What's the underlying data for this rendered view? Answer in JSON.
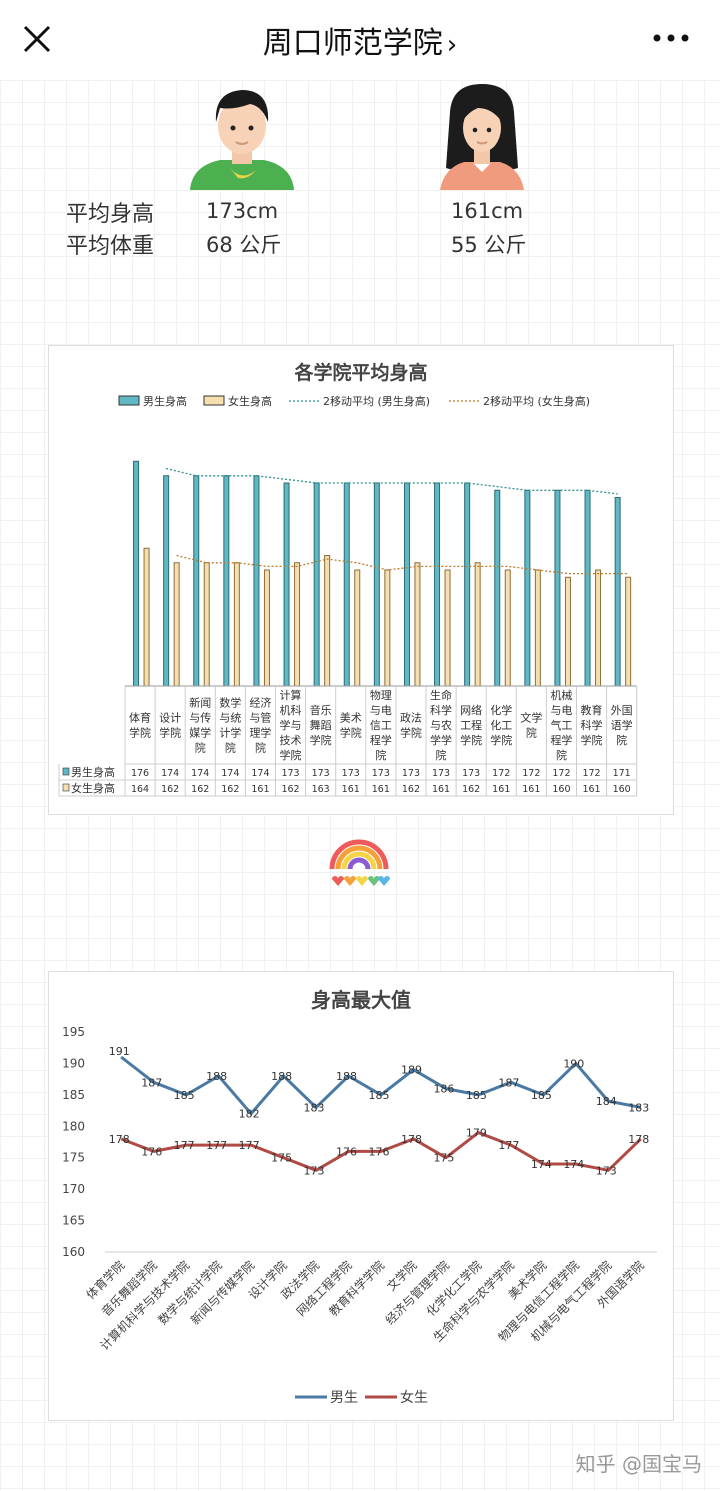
{
  "header": {
    "title": "周口师范学院",
    "chevron": "›"
  },
  "summary": {
    "height_label": "平均身高",
    "weight_label": "平均体重",
    "male": {
      "height": "173cm",
      "weight_num": "68",
      "weight_unit": "公斤"
    },
    "female": {
      "height": "161cm",
      "weight_num": "55",
      "weight_unit": "公斤"
    }
  },
  "watermark": "知乎 @国宝马",
  "colors": {
    "male_bar": "#5fb8c4",
    "female_bar": "#f5dfb0",
    "male_line": "#4a7aa3",
    "female_line": "#b04a44"
  },
  "chart_data": [
    {
      "type": "bar",
      "title": "各学院平均身高",
      "legend": [
        "男生身高",
        "女生身高",
        "2移动平均 (男生身高)",
        "2移动平均 (女生身高)"
      ],
      "categories": [
        "体育学院",
        "设计学院",
        "新闻与传媒学院",
        "数学与统计学院",
        "经济与管理学院",
        "计算机科学与技术学院",
        "音乐舞蹈学院",
        "美术学院",
        "物理与电信工程学院",
        "政法学院",
        "生命科学与农学学院",
        "网络工程学院",
        "化学化工学院",
        "文学院",
        "机械与电气工程学院",
        "教育科学学院",
        "外国语学院"
      ],
      "category_labels": [
        "体育\n学院",
        "设计\n学院",
        "新闻\n与传\n媒学\n院",
        "数学\n与统\n计学\n院",
        "经济\n与管\n理学\n院",
        "计算\n机科\n学与\n技术\n学院",
        "音乐\n舞蹈\n学院",
        "美术\n学院",
        "物理\n与电\n信工\n程学\n院",
        "政法\n学院",
        "生命\n科学\n与农\n学学\n院",
        "网络\n工程\n学院",
        "化学\n化工\n学院",
        "文学\n院",
        "机械\n与电\n气工\n程学\n院",
        "教育\n科学\n学院",
        "外国\n语学\n院"
      ],
      "series": [
        {
          "name": "男生身高",
          "values": [
            176,
            174,
            174,
            174,
            174,
            173,
            173,
            173,
            173,
            173,
            173,
            173,
            172,
            172,
            172,
            172,
            171
          ]
        },
        {
          "name": "女生身高",
          "values": [
            164,
            162,
            162,
            162,
            161,
            162,
            163,
            161,
            161,
            162,
            161,
            162,
            161,
            161,
            160,
            161,
            160
          ]
        }
      ],
      "trendlines": [
        "2移动平均 (男生身高)",
        "2移动平均 (女生身高)"
      ],
      "legend_position": "top"
    },
    {
      "type": "line",
      "title": "身高最大值",
      "categories": [
        "体育学院",
        "音乐舞蹈学院",
        "计算机科学与技术学院",
        "数学与统计学院",
        "新闻与传媒学院",
        "设计学院",
        "政法学院",
        "网络工程学院",
        "教育科学学院",
        "文学院",
        "经济与管理学院",
        "化学化工学院",
        "生命科学与农学学院",
        "美术学院",
        "物理与电信工程学院",
        "机械与电气工程学院",
        "外国语学院"
      ],
      "series": [
        {
          "name": "男生",
          "values": [
            191,
            187,
            185,
            188,
            182,
            188,
            183,
            188,
            185,
            189,
            186,
            185,
            187,
            185,
            190,
            184,
            183
          ]
        },
        {
          "name": "女生",
          "values": [
            178,
            176,
            177,
            177,
            177,
            175,
            173,
            176,
            176,
            178,
            175,
            179,
            177,
            174,
            174,
            173,
            178
          ]
        }
      ],
      "ylim": [
        160,
        195
      ],
      "yticks": [
        "195",
        "190",
        "185",
        "180",
        "175",
        "170",
        "165",
        "160"
      ],
      "grid": false,
      "legend_position": "bottom"
    }
  ]
}
